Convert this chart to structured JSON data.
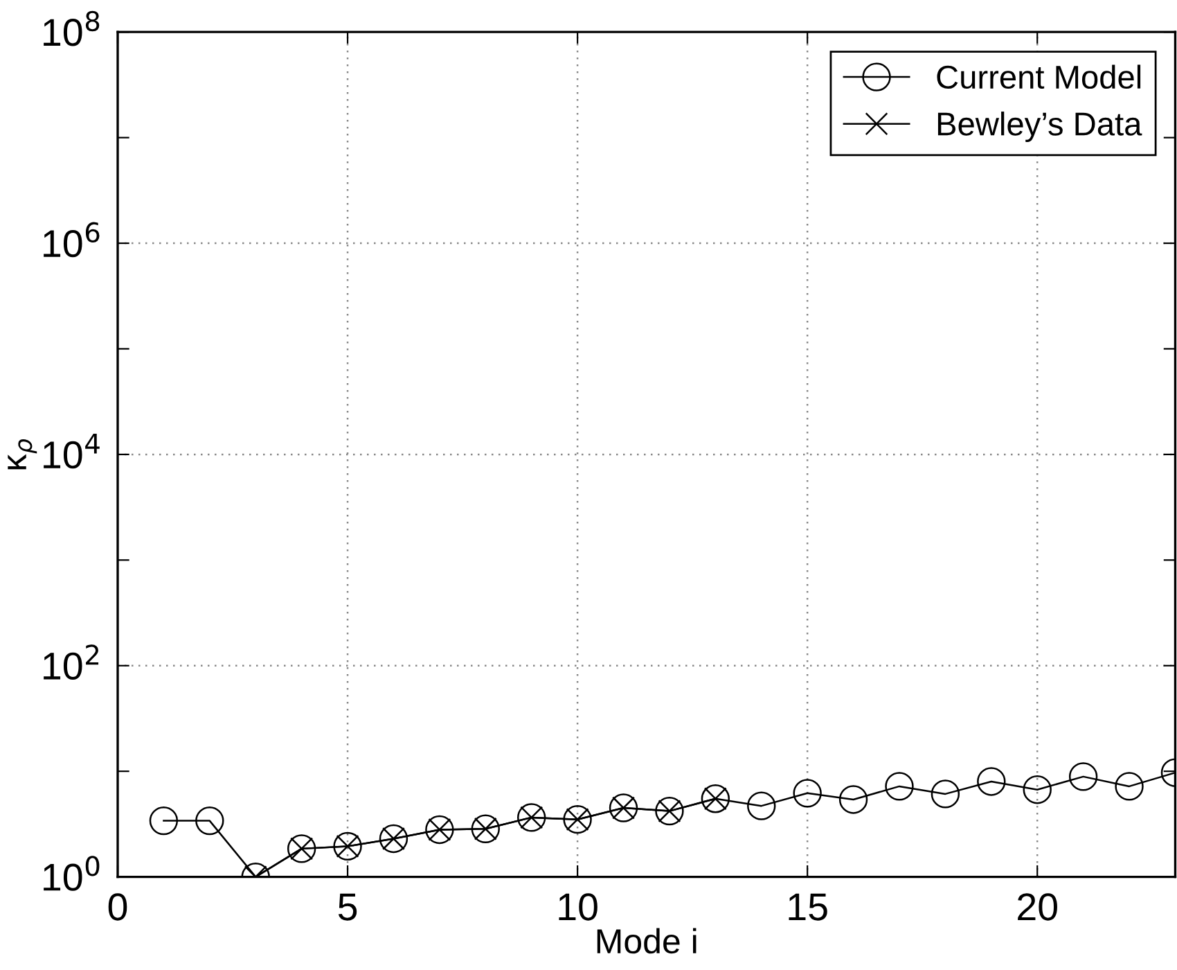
{
  "chart_data": {
    "type": "line",
    "xlabel": "Mode i",
    "ylabel": "κ$_{ρ}$",
    "log": "y",
    "xlim": [
      0,
      23
    ],
    "xticks": [
      0,
      5,
      10,
      15,
      20
    ],
    "ylim": [
      1,
      100000000
    ],
    "yticks": [
      {
        "value": 1,
        "label": "10$^{0}$"
      },
      {
        "value": 10,
        "label": null
      },
      {
        "value": 100,
        "label": "10$^{2}$"
      },
      {
        "value": 1000,
        "label": null
      },
      {
        "value": 10000,
        "label": "10$^{4}$"
      },
      {
        "value": 100000,
        "label": null
      },
      {
        "value": 1000000,
        "label": "10$^{6}$"
      },
      {
        "value": 10000000,
        "label": null
      },
      {
        "value": 100000000,
        "label": "10$^{8}$"
      }
    ],
    "grid": true,
    "legend": "top right",
    "line_style": "solid",
    "series": [
      {
        "name": "Current Model",
        "color": "#000000",
        "marker": "circle",
        "x": [
          1,
          2,
          3,
          4,
          5,
          6,
          7,
          8,
          9,
          10,
          11,
          12,
          13,
          14,
          15,
          16,
          17,
          18,
          19,
          20,
          21,
          22,
          23
        ],
        "values": [
          3.4,
          3.4,
          1.0,
          1.85,
          1.95,
          2.3,
          2.8,
          2.85,
          3.65,
          3.5,
          4.5,
          4.2,
          5.5,
          4.7,
          6.2,
          5.4,
          7.2,
          6.1,
          8.0,
          6.7,
          8.9,
          7.2,
          9.7
        ]
      },
      {
        "name": "Bewley’s Data",
        "color": "#000000",
        "marker": "cross",
        "x": [
          3,
          4,
          5,
          6,
          7,
          8,
          9,
          10,
          11,
          12,
          13
        ],
        "values": [
          1.0,
          1.85,
          1.95,
          2.3,
          2.8,
          2.85,
          3.65,
          3.5,
          4.5,
          4.2,
          5.5
        ]
      }
    ]
  }
}
